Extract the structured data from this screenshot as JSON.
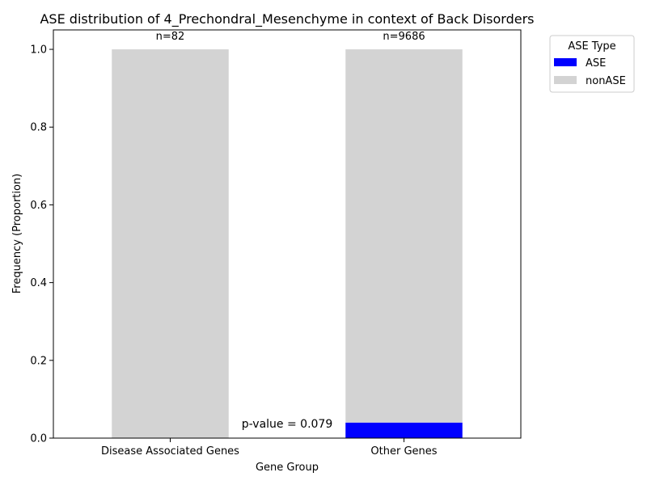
{
  "chart_data": {
    "type": "bar",
    "stacked": true,
    "title": "ASE distribution of 4_Prechondral_Mesenchyme in context of Back Disorders",
    "xlabel": "Gene Group",
    "ylabel": "Frequency (Proportion)",
    "categories": [
      "Disease Associated Genes",
      "Other Genes"
    ],
    "series": [
      {
        "name": "ASE",
        "color": "#0000ff",
        "values": [
          0.0,
          0.04
        ]
      },
      {
        "name": "nonASE",
        "color": "#d3d3d3",
        "values": [
          1.0,
          0.96
        ]
      }
    ],
    "bar_labels": [
      "n=82",
      "n=9686"
    ],
    "annotation": "p-value = 0.079",
    "ylim": [
      0,
      1.05
    ],
    "yticks": [
      "0.0",
      "0.2",
      "0.4",
      "0.6",
      "0.8",
      "1.0"
    ],
    "ytick_values": [
      0,
      0.2,
      0.4,
      0.6,
      0.8,
      1.0
    ],
    "grid": false,
    "legend": {
      "title": "ASE Type",
      "placement": "outside-upper-right"
    }
  }
}
